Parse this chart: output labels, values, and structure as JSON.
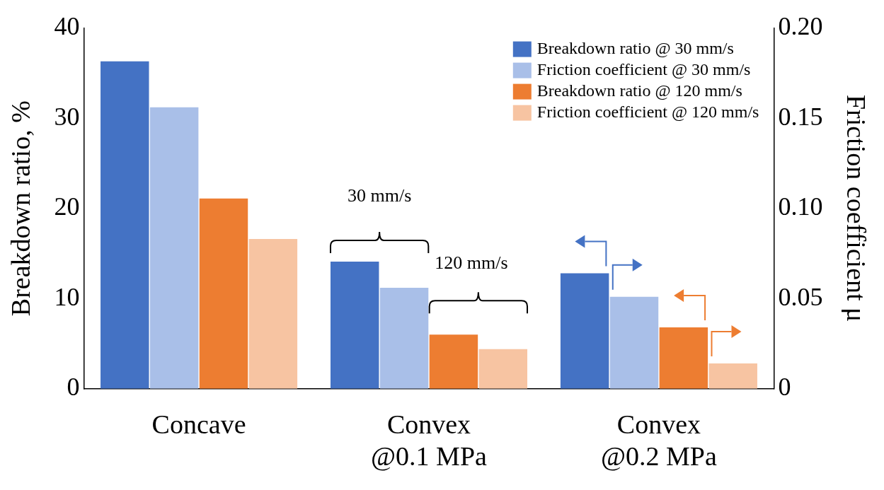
{
  "chart_data": {
    "type": "bar",
    "categories": [
      "Concave",
      "Convex\n@0.1 MPa",
      "Convex\n@0.2 MPa"
    ],
    "ylabel": "Breakdown ratio, %",
    "y2label": "Friction coefficient μ",
    "series": [
      {
        "name": "Breakdown ratio @ 30 mm/s",
        "color": "#4472c4",
        "values": [
          36.3,
          14.1,
          12.8
        ]
      },
      {
        "name": "Friction coefficient @ 30 mm/s",
        "color": "#a9bfe8",
        "values": [
          0.156,
          0.056,
          0.051
        ],
        "axis": "y2"
      },
      {
        "name": "Breakdown ratio @ 120 mm/s",
        "color": "#ed7d31",
        "values": [
          21.1,
          6.0,
          6.8
        ]
      },
      {
        "name": "Friction coefficient @ 120 mm/s",
        "color": "#f7c4a2",
        "values": [
          0.083,
          0.022,
          0.014
        ],
        "axis": "y2"
      }
    ],
    "ylim": [
      0,
      40
    ],
    "yticks": [
      0,
      10,
      20,
      30,
      40
    ],
    "y2lim": [
      0,
      0.2
    ],
    "y2ticks": [
      {
        "value": 0,
        "label": "0"
      },
      {
        "value": 0.05,
        "label": "0.05"
      },
      {
        "value": 0.1,
        "label": "0.10"
      },
      {
        "value": 0.15,
        "label": "0.15"
      },
      {
        "value": 0.2,
        "label": "0.20"
      }
    ],
    "annotations": [
      "30 mm/s",
      "120 mm/s"
    ],
    "legend": "top right",
    "grid": false
  }
}
